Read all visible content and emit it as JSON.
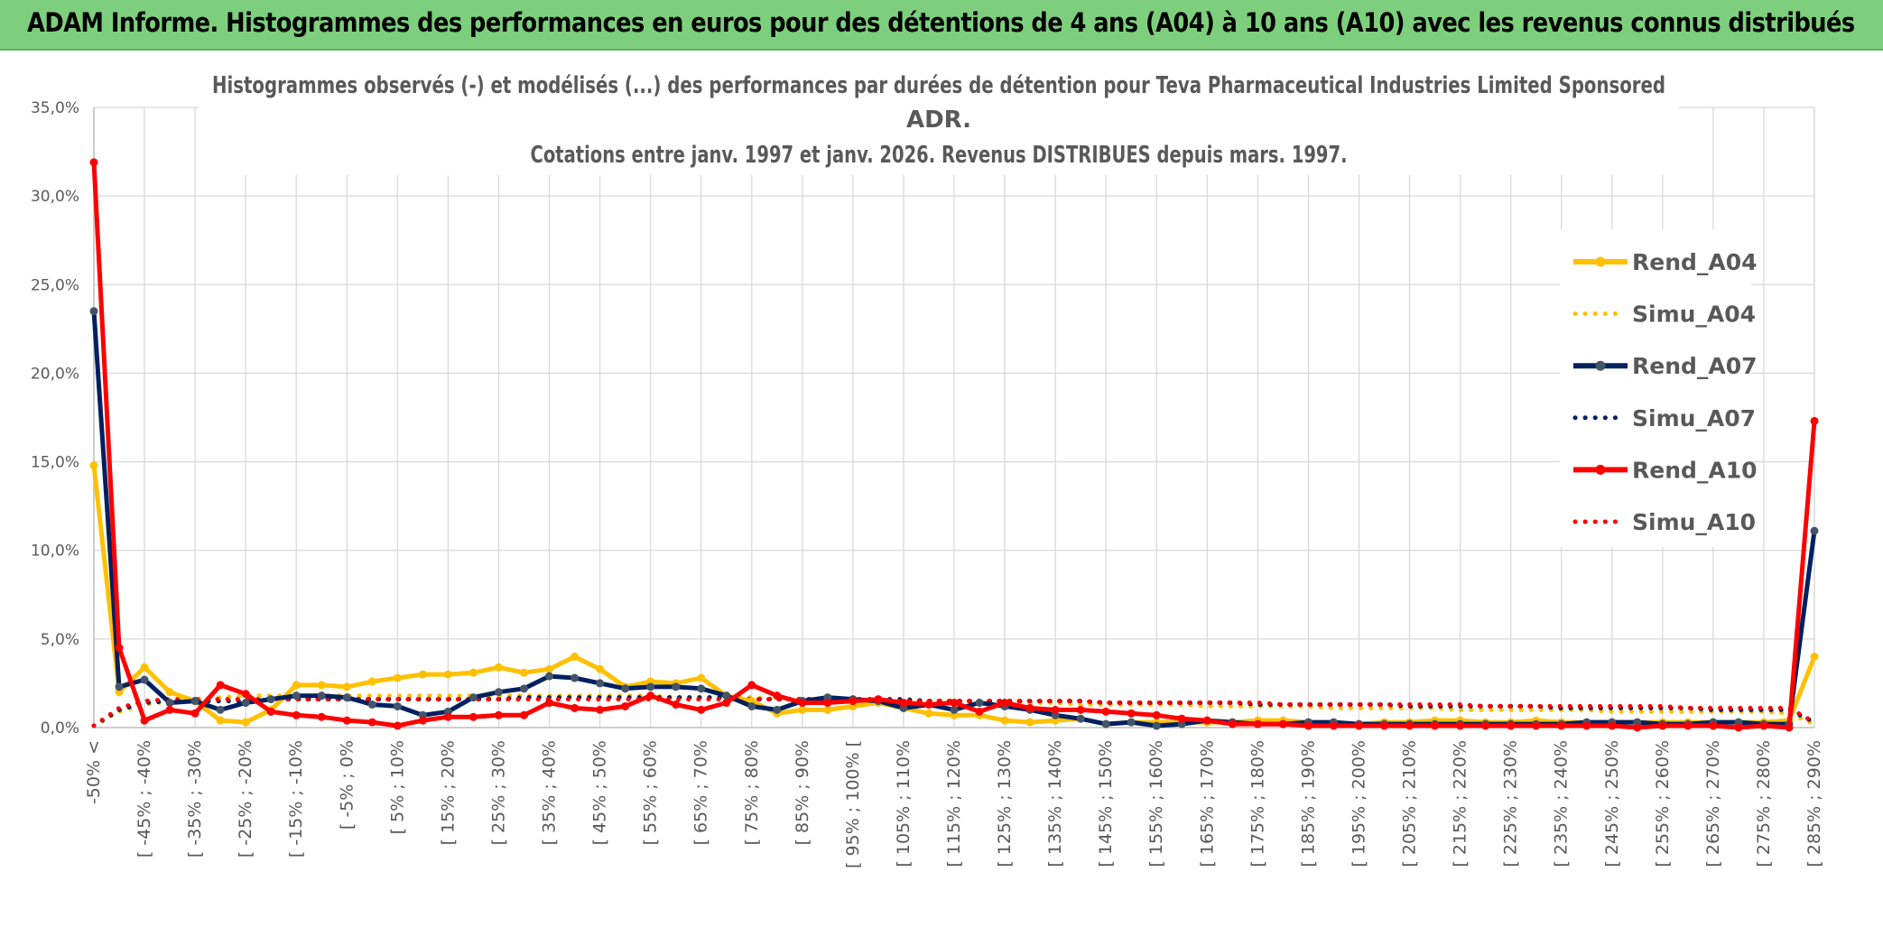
{
  "header": {
    "title": "ADAM Informe. Histogrammes des performances en euros pour des détentions de 4 ans (A04) à 10 ans (A10) avec les revenus connus distribués"
  },
  "colors": {
    "header_bg": "#7dcf7d",
    "rend_a04": "#ffc000",
    "rend_a07": "#002060",
    "rend_a07_marker": "#44546a",
    "rend_a10": "#ff0000",
    "grid": "#d9d9d9"
  },
  "chart_data": {
    "type": "line",
    "title_lines": [
      "Histogrammes observés (-) et modélisés (...) des performances par durées de détention pour Teva Pharmaceutical Industries Limited Sponsored",
      "ADR.",
      "Cotations entre janv. 1997 et janv. 2026. Revenus DISTRIBUES depuis mars. 1997."
    ],
    "ylim": [
      0,
      35
    ],
    "y_ticks": [
      "0,0%",
      "5,0%",
      "10,0%",
      "15,0%",
      "20,0%",
      "25,0%",
      "30,0%",
      "35,0%"
    ],
    "x_labels": [
      "-50% <",
      "[ -45% ; -40%",
      "[ -35% ; -30%",
      "[ -25% ; -20%",
      "[ -15% ; -10%",
      "[ -5% ; 0%",
      "[ 5% ; 10%",
      "[ 15% ; 20%",
      "[ 25% ; 30%",
      "[ 35% ; 40%",
      "[ 45% ; 50%",
      "[ 55% ; 60%",
      "[ 65% ; 70%",
      "[ 75% ; 80%",
      "[ 85% ; 90%",
      "[ 95% ; 100% [",
      "[ 105% ; 110%",
      "[ 115% ; 120%",
      "[ 125% ; 130%",
      "[ 135% ; 140%",
      "[ 145% ; 150%",
      "[ 155% ; 160%",
      "[ 165% ; 170%",
      "[ 175% ; 180%",
      "[ 185% ; 190%",
      "[ 195% ; 200%",
      "[ 205% ; 210%",
      "[ 215% ; 220%",
      "[ 225% ; 230%",
      "[ 235% ; 240%",
      "[ 245% ; 250%",
      "[ 255% ; 260%",
      "[ 265% ; 270%",
      "[ 275% ; 280%",
      "[ 285% ; 290%"
    ],
    "num_points": 69,
    "series": [
      {
        "name": "Rend_A04",
        "style": "solid",
        "color": "#ffc000",
        "marker": "#ffc000",
        "values": [
          14.8,
          2.0,
          3.4,
          2.0,
          1.5,
          0.4,
          0.3,
          1.0,
          2.4,
          2.4,
          2.3,
          2.6,
          2.8,
          3.0,
          3.0,
          3.1,
          3.4,
          3.1,
          3.3,
          4.0,
          3.3,
          2.3,
          2.6,
          2.5,
          2.8,
          1.8,
          1.5,
          0.8,
          1.0,
          1.0,
          1.2,
          1.4,
          1.1,
          0.8,
          0.7,
          0.7,
          0.4,
          0.3,
          0.4,
          0.5,
          0.2,
          0.3,
          0.3,
          0.3,
          0.3,
          0.3,
          0.4,
          0.4,
          0.3,
          0.2,
          0.2,
          0.3,
          0.3,
          0.4,
          0.4,
          0.3,
          0.3,
          0.4,
          0.3,
          0.3,
          0.3,
          0.3,
          0.3,
          0.3,
          0.3,
          0.3,
          0.3,
          0.4,
          4.0
        ]
      },
      {
        "name": "Simu_A04",
        "style": "dotted",
        "color": "#ffc000",
        "values": [
          0.1,
          0.9,
          1.3,
          1.5,
          1.6,
          1.7,
          1.8,
          1.8,
          1.8,
          1.8,
          1.8,
          1.8,
          1.8,
          1.8,
          1.8,
          1.8,
          1.8,
          1.8,
          1.8,
          1.8,
          1.8,
          1.8,
          1.8,
          1.7,
          1.7,
          1.7,
          1.7,
          1.6,
          1.6,
          1.6,
          1.6,
          1.5,
          1.5,
          1.5,
          1.5,
          1.4,
          1.4,
          1.4,
          1.4,
          1.3,
          1.3,
          1.3,
          1.3,
          1.3,
          1.2,
          1.2,
          1.2,
          1.2,
          1.2,
          1.1,
          1.1,
          1.1,
          1.1,
          1.1,
          1.0,
          1.0,
          1.0,
          1.0,
          1.0,
          1.0,
          0.9,
          0.9,
          0.9,
          0.9,
          0.9,
          0.9,
          0.9,
          0.8,
          0.2
        ]
      },
      {
        "name": "Rend_A07",
        "style": "solid",
        "color": "#002060",
        "marker": "#44546a",
        "values": [
          23.5,
          2.3,
          2.7,
          1.4,
          1.5,
          1.0,
          1.4,
          1.6,
          1.8,
          1.8,
          1.7,
          1.3,
          1.2,
          0.7,
          0.9,
          1.7,
          2.0,
          2.2,
          2.9,
          2.8,
          2.5,
          2.2,
          2.3,
          2.3,
          2.2,
          1.8,
          1.2,
          1.0,
          1.5,
          1.7,
          1.6,
          1.5,
          1.1,
          1.3,
          1.0,
          1.4,
          1.2,
          1.0,
          0.7,
          0.5,
          0.2,
          0.3,
          0.1,
          0.2,
          0.4,
          0.3,
          0.2,
          0.2,
          0.3,
          0.3,
          0.2,
          0.2,
          0.2,
          0.2,
          0.2,
          0.2,
          0.2,
          0.2,
          0.2,
          0.3,
          0.3,
          0.3,
          0.2,
          0.2,
          0.3,
          0.3,
          0.2,
          0.2,
          11.1
        ]
      },
      {
        "name": "Simu_A07",
        "style": "dotted",
        "color": "#002060",
        "values": [
          0.1,
          1.0,
          1.4,
          1.5,
          1.5,
          1.5,
          1.5,
          1.6,
          1.6,
          1.6,
          1.6,
          1.6,
          1.6,
          1.6,
          1.6,
          1.6,
          1.6,
          1.7,
          1.7,
          1.7,
          1.7,
          1.7,
          1.7,
          1.7,
          1.7,
          1.7,
          1.6,
          1.6,
          1.6,
          1.6,
          1.6,
          1.6,
          1.6,
          1.5,
          1.5,
          1.5,
          1.5,
          1.5,
          1.5,
          1.5,
          1.4,
          1.4,
          1.4,
          1.4,
          1.4,
          1.4,
          1.3,
          1.3,
          1.3,
          1.3,
          1.3,
          1.3,
          1.2,
          1.2,
          1.2,
          1.2,
          1.2,
          1.2,
          1.1,
          1.1,
          1.1,
          1.1,
          1.1,
          1.1,
          1.0,
          1.0,
          1.0,
          1.0,
          0.3
        ]
      },
      {
        "name": "Rend_A10",
        "style": "solid",
        "color": "#ff0000",
        "marker": "#ff0000",
        "values": [
          31.9,
          4.5,
          0.4,
          1.0,
          0.8,
          2.4,
          1.9,
          0.9,
          0.7,
          0.6,
          0.4,
          0.3,
          0.1,
          0.4,
          0.6,
          0.6,
          0.7,
          0.7,
          1.4,
          1.1,
          1.0,
          1.2,
          1.8,
          1.3,
          1.0,
          1.4,
          2.4,
          1.8,
          1.4,
          1.4,
          1.5,
          1.6,
          1.4,
          1.3,
          1.4,
          0.9,
          1.4,
          1.1,
          1.0,
          1.0,
          0.9,
          0.8,
          0.7,
          0.5,
          0.4,
          0.2,
          0.2,
          0.2,
          0.1,
          0.1,
          0.1,
          0.1,
          0.1,
          0.1,
          0.1,
          0.1,
          0.1,
          0.1,
          0.1,
          0.1,
          0.1,
          0.0,
          0.1,
          0.1,
          0.1,
          0.0,
          0.1,
          0.0,
          17.3
        ]
      },
      {
        "name": "Simu_A10",
        "style": "dotted",
        "color": "#ff0000",
        "values": [
          0.1,
          1.1,
          1.5,
          1.6,
          1.6,
          1.6,
          1.6,
          1.6,
          1.6,
          1.6,
          1.6,
          1.6,
          1.6,
          1.6,
          1.6,
          1.6,
          1.6,
          1.6,
          1.6,
          1.6,
          1.6,
          1.6,
          1.6,
          1.6,
          1.6,
          1.6,
          1.6,
          1.6,
          1.6,
          1.6,
          1.6,
          1.5,
          1.5,
          1.5,
          1.5,
          1.5,
          1.5,
          1.5,
          1.5,
          1.5,
          1.4,
          1.4,
          1.4,
          1.4,
          1.4,
          1.4,
          1.4,
          1.3,
          1.3,
          1.3,
          1.3,
          1.3,
          1.3,
          1.3,
          1.3,
          1.2,
          1.2,
          1.2,
          1.2,
          1.2,
          1.2,
          1.2,
          1.2,
          1.1,
          1.1,
          1.1,
          1.1,
          1.1,
          0.3
        ]
      }
    ],
    "legend": {
      "position": "right",
      "entries": [
        "Rend_A04",
        "Simu_A04",
        "Rend_A07",
        "Simu_A07",
        "Rend_A10",
        "Simu_A10"
      ]
    },
    "grid": true
  }
}
